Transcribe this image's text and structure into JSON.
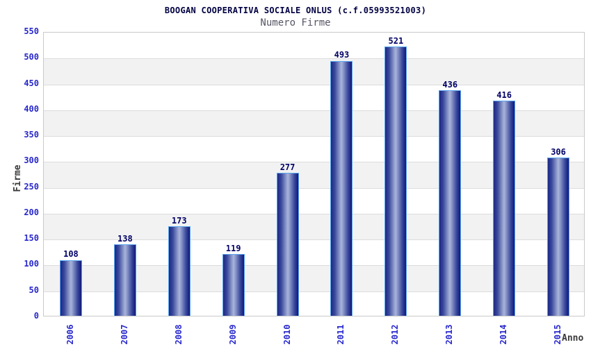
{
  "header": {
    "title": "BOOGAN COOPERATIVA SOCIALE ONLUS (c.f.05993521003)",
    "subtitle": "Numero Firme"
  },
  "chart_data": {
    "type": "bar",
    "title": "BOOGAN COOPERATIVA SOCIALE ONLUS (c.f.05993521003)",
    "subtitle": "Numero Firme",
    "xlabel": "Anno",
    "ylabel": "Firme",
    "categories": [
      "2006",
      "2007",
      "2008",
      "2009",
      "2010",
      "2011",
      "2012",
      "2013",
      "2014",
      "2015"
    ],
    "values": [
      108,
      138,
      173,
      119,
      277,
      493,
      521,
      436,
      416,
      306
    ],
    "ylim": [
      0,
      550
    ],
    "ytick_step": 50,
    "yticks": [
      0,
      50,
      100,
      150,
      200,
      250,
      300,
      350,
      400,
      450,
      500,
      550
    ],
    "legend": "none",
    "grid": "horizontal gridlines every 50 with alternating white/gray bands",
    "colors": {
      "bar_edge": "#1c2887",
      "bar_center": "#aab3da",
      "bar_border": "#5aa7f0",
      "value_label": "#000066",
      "tick_label": "#2727cd",
      "title": "#000042",
      "subtitle": "#565666",
      "axis_title": "#3a3a3a",
      "band_gray": "#f2f2f2",
      "gridline": "#dcdcdc",
      "plot_border": "#c9c9c9",
      "background": "#ffffff"
    }
  }
}
